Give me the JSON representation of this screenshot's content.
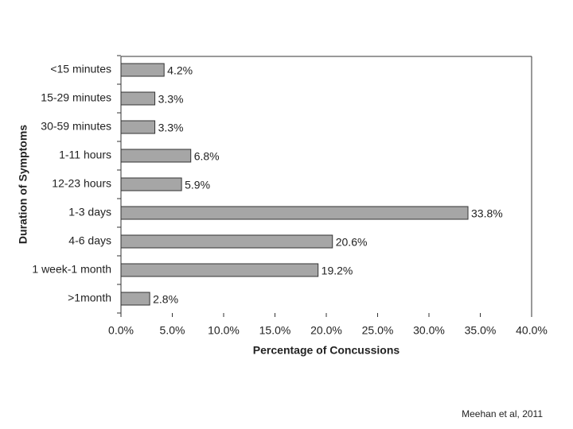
{
  "chart_data": {
    "type": "hbar",
    "categories": [
      "<15 minutes",
      "15-29 minutes",
      "30-59 minutes",
      "1-11 hours",
      "12-23 hours",
      "1-3 days",
      "4-6 days",
      "1 week-1 month",
      ">1month"
    ],
    "values": [
      4.2,
      3.3,
      3.3,
      6.8,
      5.9,
      33.8,
      20.6,
      19.2,
      2.8
    ],
    "value_labels": [
      "4.2%",
      "3.3%",
      "3.3%",
      "6.8%",
      "5.9%",
      "33.8%",
      "20.6%",
      "19.2%",
      "2.8%"
    ],
    "color": "#a6a6a6",
    "xlim": [
      0,
      40
    ],
    "xticks": [
      {
        "value": 0,
        "label": "0.0%"
      },
      {
        "value": 5,
        "label": "5.0%"
      },
      {
        "value": 10,
        "label": "10.0%"
      },
      {
        "value": 15,
        "label": "15.0%"
      },
      {
        "value": 20,
        "label": "20.0%"
      },
      {
        "value": 25,
        "label": "25.0%"
      },
      {
        "value": 30,
        "label": "30.0%"
      },
      {
        "value": 35,
        "label": "35.0%"
      },
      {
        "value": 40,
        "label": "40.0%"
      }
    ],
    "x_label": "Percentage of Concussions",
    "y_label": "Duration of Symptoms",
    "source": "Meehan et al, 2011"
  }
}
